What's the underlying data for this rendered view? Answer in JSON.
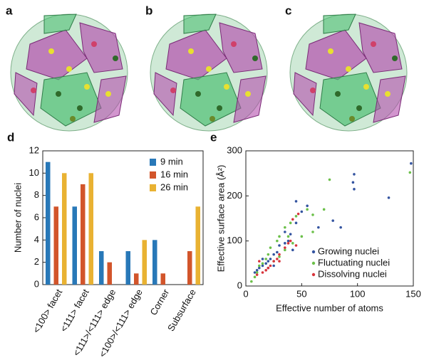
{
  "images": [
    {
      "label": "a"
    },
    {
      "label": "b"
    },
    {
      "label": "c"
    }
  ],
  "chart_data": [
    {
      "type": "bar",
      "label": "d",
      "ylabel": "Number of nuclei",
      "categories": [
        "<100> facet",
        "<111> facet",
        "<111>/<111> edge",
        "<100>/<111> edge",
        "Corner",
        "Subsurface"
      ],
      "series": [
        {
          "name": "9 min",
          "color": "#2878b8",
          "values": [
            11,
            7,
            3,
            3,
            4,
            0
          ]
        },
        {
          "name": "16 min",
          "color": "#d2552b",
          "values": [
            7,
            9,
            2,
            1,
            1,
            3
          ]
        },
        {
          "name": "26 min",
          "color": "#e9b232",
          "values": [
            10,
            10,
            0,
            4,
            0,
            7
          ]
        }
      ],
      "ylim": [
        0,
        12
      ],
      "yticks": [
        0,
        2,
        4,
        6,
        8,
        10,
        12
      ],
      "legend": "upper right"
    },
    {
      "type": "scatter",
      "label": "e",
      "xlabel": "Effective number of atoms",
      "ylabel": "Effective surface area (Å²)",
      "xlim": [
        0,
        150
      ],
      "xticks": [
        0,
        50,
        100,
        150
      ],
      "ylim": [
        0,
        300
      ],
      "yticks": [
        0,
        100,
        200,
        300
      ],
      "legend": "lower right",
      "series": [
        {
          "name": "Growing nuclei",
          "color": "#3454a0",
          "x": [
            148,
            128,
            97,
            96,
            97,
            85,
            78,
            65,
            55,
            45,
            50,
            45,
            40,
            38,
            35,
            30,
            25,
            22,
            20,
            18,
            15,
            12,
            10,
            8,
            20,
            28,
            42,
            35,
            15,
            25
          ],
          "values": [
            272,
            196,
            248,
            230,
            215,
            130,
            145,
            130,
            178,
            188,
            165,
            140,
            115,
            100,
            95,
            90,
            70,
            60,
            55,
            50,
            45,
            40,
            35,
            30,
            40,
            75,
            80,
            120,
            60,
            45
          ]
        },
        {
          "name": "Fluctuating nuclei",
          "color": "#6cc04a",
          "x": [
            147,
            75,
            70,
            60,
            55,
            45,
            40,
            35,
            30,
            28,
            22,
            20,
            18,
            12,
            10,
            8,
            5,
            15,
            25,
            35,
            42,
            50,
            60,
            38,
            30
          ],
          "values": [
            252,
            236,
            170,
            158,
            170,
            155,
            140,
            130,
            110,
            100,
            85,
            70,
            60,
            45,
            30,
            20,
            10,
            50,
            55,
            80,
            95,
            110,
            120,
            110,
            65
          ]
        },
        {
          "name": "Dissolving nuclei",
          "color": "#d8343c",
          "x": [
            47,
            42,
            40,
            35,
            30,
            28,
            25,
            22,
            20,
            18,
            15,
            12,
            10,
            30,
            38,
            45
          ],
          "values": [
            160,
            148,
            100,
            85,
            70,
            60,
            55,
            45,
            40,
            35,
            30,
            55,
            25,
            55,
            95,
            90
          ]
        }
      ]
    }
  ]
}
